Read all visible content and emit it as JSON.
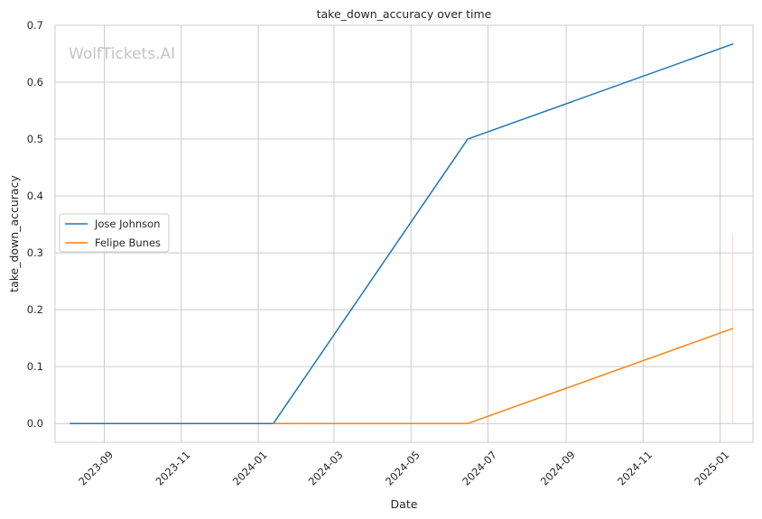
{
  "chart_data": {
    "type": "line",
    "title": "take_down_accuracy over time",
    "xlabel": "Date",
    "ylabel": "take_down_accuracy",
    "watermark": "WolfTickets.AI",
    "x_tick_labels": [
      "2023-09",
      "2023-11",
      "2024-01",
      "2024-03",
      "2024-05",
      "2024-07",
      "2024-09",
      "2024-11",
      "2025-01"
    ],
    "x_ticks": [
      "2023-09-01",
      "2023-11-01",
      "2024-01-01",
      "2024-03-01",
      "2024-05-01",
      "2024-07-01",
      "2024-09-01",
      "2024-11-01",
      "2025-01-01"
    ],
    "y_ticks": [
      "0.0",
      "0.1",
      "0.2",
      "0.3",
      "0.4",
      "0.5",
      "0.6",
      "0.7"
    ],
    "xlim": [
      "2023-07-24",
      "2025-01-27"
    ],
    "ylim": [
      -0.033,
      0.7
    ],
    "grid": true,
    "legend_position": "center-left",
    "series": [
      {
        "name": "Jose Johnson",
        "color": "#1f77b4",
        "x": [
          "2023-08-05",
          "2024-01-13",
          "2024-06-15",
          "2025-01-11"
        ],
        "y": [
          0.0,
          0.0,
          0.5,
          0.667
        ]
      },
      {
        "name": "Felipe Bunes",
        "color": "#ff7f0e",
        "x": [
          "2024-01-13",
          "2024-06-15",
          "2025-01-11"
        ],
        "y": [
          0.0,
          0.0,
          0.167
        ]
      }
    ],
    "annotation_line": {
      "x": "2025-01-11",
      "y": [
        0.0,
        0.333
      ],
      "color": "#f5deb3"
    }
  }
}
